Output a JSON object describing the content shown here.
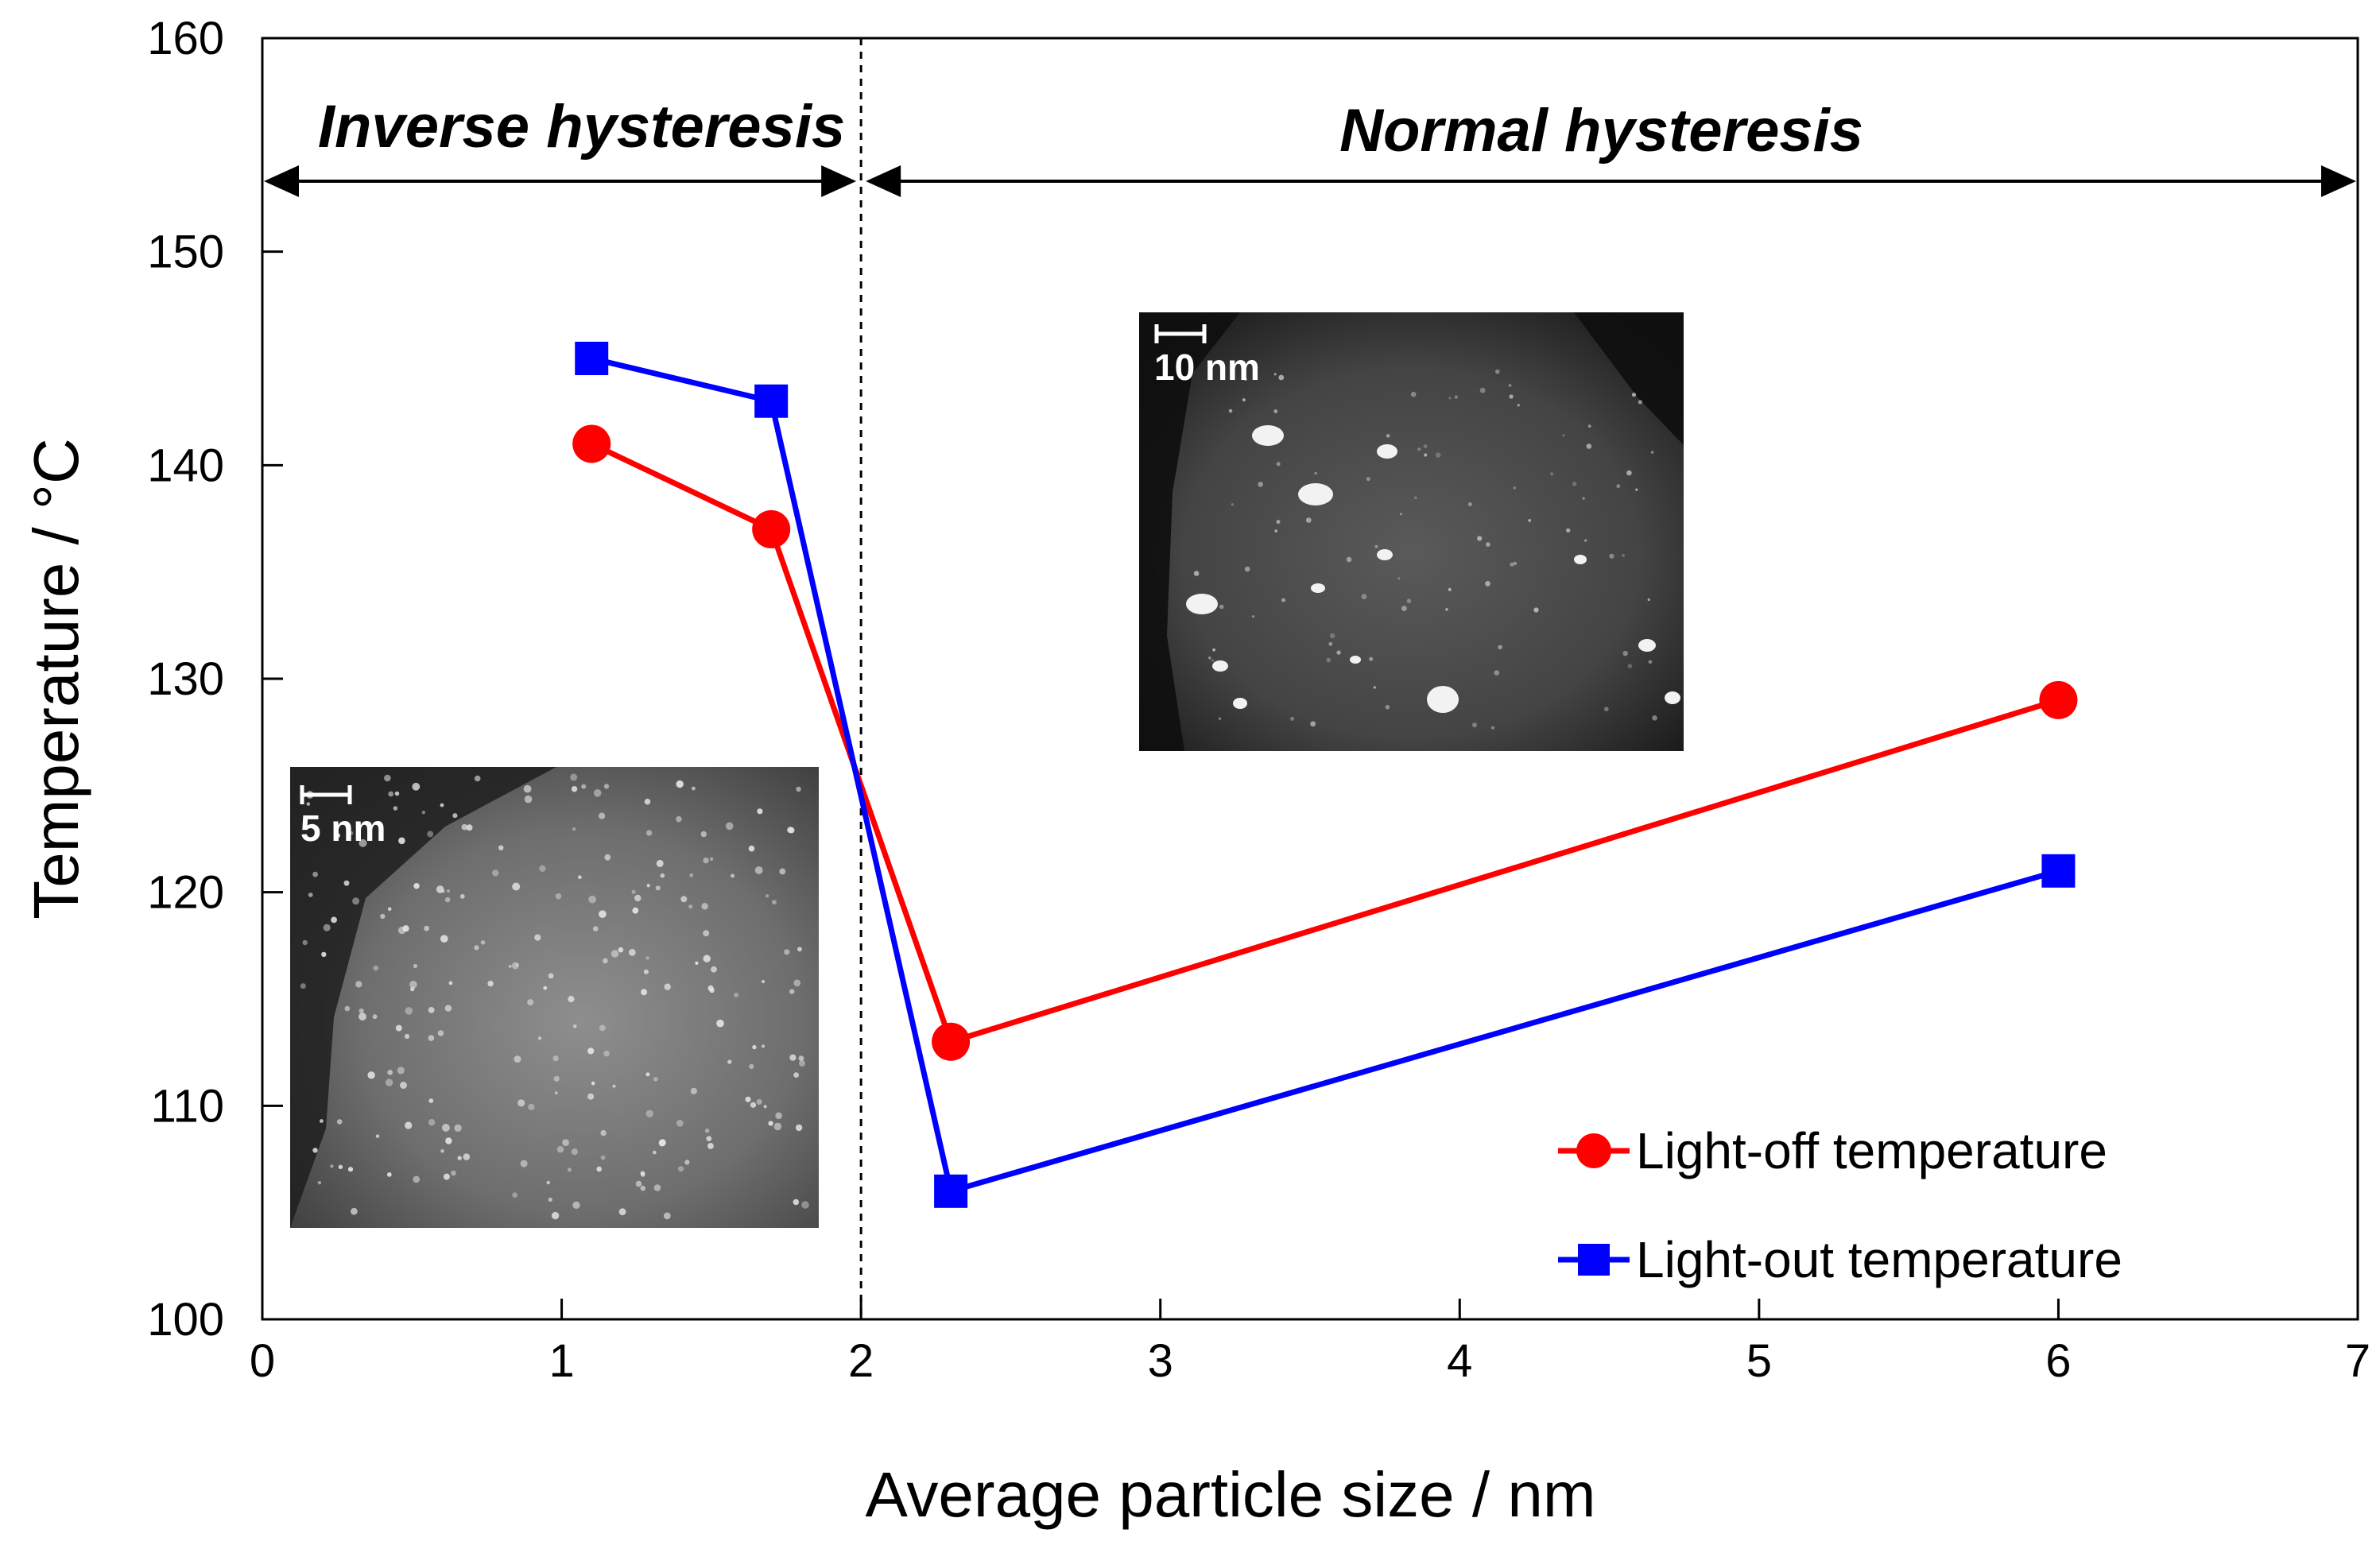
{
  "chart_data": {
    "type": "line",
    "title": "",
    "xlabel": "Average particle size / nm",
    "ylabel": "Temperature / °C",
    "xlim": [
      0,
      7
    ],
    "ylim": [
      100,
      160
    ],
    "xticks": [
      0,
      1,
      2,
      3,
      4,
      5,
      6,
      7
    ],
    "xtick_labels": [
      "0",
      "1",
      "2",
      "3",
      "4",
      "5",
      "6",
      "7"
    ],
    "yticks": [
      100,
      110,
      120,
      130,
      140,
      150,
      160
    ],
    "ytick_labels": [
      "100",
      "110",
      "120",
      "130",
      "140",
      "150",
      "160"
    ],
    "grid": false,
    "legend_position": "bottom-right",
    "series": [
      {
        "name": "Light-off temperature",
        "color": "#ff0000",
        "marker": "circle",
        "x": [
          1.1,
          1.7,
          2.3,
          6.0
        ],
        "y": [
          141,
          137,
          113,
          129
        ]
      },
      {
        "name": "Light-out temperature",
        "color": "#0000ff",
        "marker": "square",
        "x": [
          1.1,
          1.7,
          2.3,
          6.0
        ],
        "y": [
          145,
          143,
          106,
          121
        ]
      }
    ],
    "divider_x": 2,
    "regions": [
      {
        "label": "Inverse hysteresis",
        "x_start": 0,
        "x_end": 2
      },
      {
        "label": "Normal hysteresis",
        "x_start": 2,
        "x_end": 7
      }
    ],
    "insets": [
      {
        "name": "stem-image-small-particles",
        "scale_label": "5 nm"
      },
      {
        "name": "stem-image-large-particles",
        "scale_label": "10 nm"
      }
    ]
  }
}
